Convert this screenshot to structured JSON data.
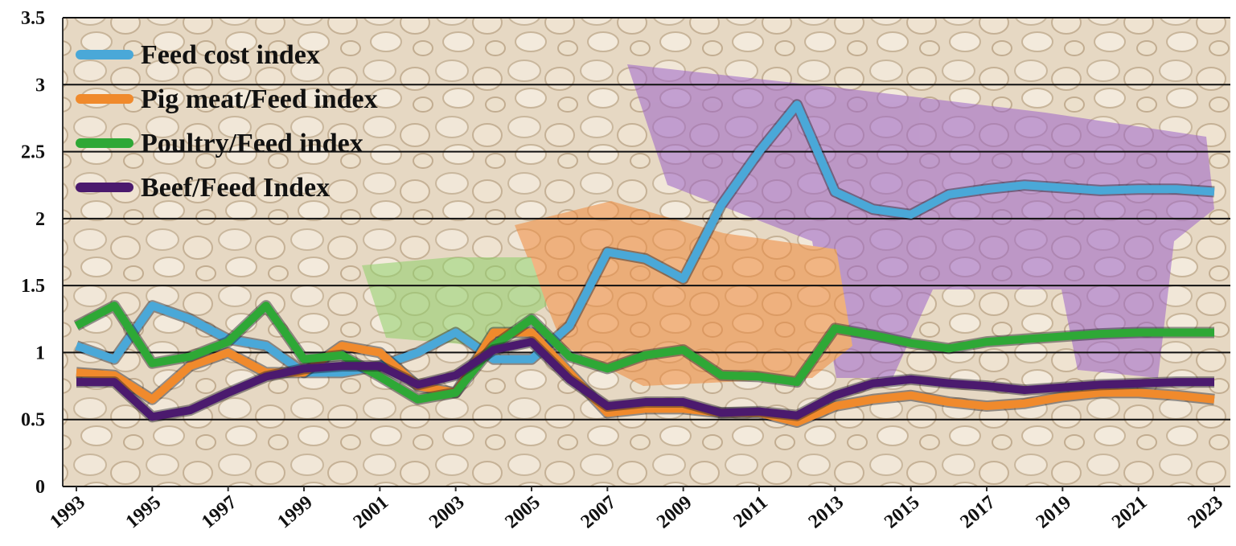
{
  "chart_data": {
    "type": "line",
    "x": [
      1993,
      1994,
      1995,
      1996,
      1997,
      1998,
      1999,
      2000,
      2001,
      2002,
      2003,
      2004,
      2005,
      2006,
      2007,
      2008,
      2009,
      2010,
      2011,
      2012,
      2013,
      2014,
      2015,
      2016,
      2017,
      2018,
      2019,
      2020,
      2021,
      2022,
      2023
    ],
    "xlim": [
      1993,
      2023
    ],
    "xticks": [
      1993,
      1995,
      1997,
      1999,
      2001,
      2003,
      2005,
      2007,
      2009,
      2011,
      2013,
      2015,
      2017,
      2019,
      2021,
      2023
    ],
    "ylim": [
      0,
      3.5
    ],
    "yticks": [
      0,
      0.5,
      1,
      1.5,
      2,
      2.5,
      3,
      3.5
    ],
    "grid": true,
    "legend": "top-left",
    "series": [
      {
        "name": "Feed cost index",
        "color": "#4aa8d8",
        "values": [
          1.05,
          0.95,
          1.35,
          1.25,
          1.1,
          1.05,
          0.85,
          0.85,
          0.9,
          1.0,
          1.15,
          0.95,
          0.95,
          1.2,
          1.75,
          1.7,
          1.55,
          2.1,
          2.5,
          2.85,
          2.2,
          2.07,
          2.03,
          2.18,
          2.22,
          2.25,
          2.23,
          2.21,
          2.22,
          2.22,
          2.2
        ]
      },
      {
        "name": "Pig meat/Feed  index",
        "color": "#f08a2c",
        "values": [
          0.85,
          0.83,
          0.65,
          0.9,
          1.0,
          0.85,
          0.85,
          1.05,
          1.0,
          0.75,
          0.7,
          1.15,
          1.15,
          0.85,
          0.55,
          0.58,
          0.58,
          0.55,
          0.55,
          0.48,
          0.6,
          0.65,
          0.68,
          0.63,
          0.6,
          0.62,
          0.67,
          0.7,
          0.7,
          0.68,
          0.65
        ]
      },
      {
        "name": "Poultry/Feed index",
        "color": "#2ea836",
        "values": [
          1.2,
          1.35,
          0.92,
          0.97,
          1.08,
          1.35,
          0.95,
          0.98,
          0.82,
          0.65,
          0.7,
          1.05,
          1.25,
          0.97,
          0.88,
          0.98,
          1.02,
          0.83,
          0.82,
          0.78,
          1.18,
          1.13,
          1.07,
          1.03,
          1.08,
          1.1,
          1.12,
          1.14,
          1.15,
          1.15,
          1.15
        ]
      },
      {
        "name": "Beef/Feed Index",
        "color": "#4b1a6e",
        "values": [
          0.78,
          0.78,
          0.52,
          0.57,
          0.7,
          0.82,
          0.88,
          0.9,
          0.9,
          0.76,
          0.83,
          1.02,
          1.08,
          0.8,
          0.6,
          0.63,
          0.63,
          0.55,
          0.56,
          0.53,
          0.68,
          0.77,
          0.8,
          0.77,
          0.75,
          0.72,
          0.74,
          0.76,
          0.77,
          0.78,
          0.78
        ]
      }
    ]
  }
}
